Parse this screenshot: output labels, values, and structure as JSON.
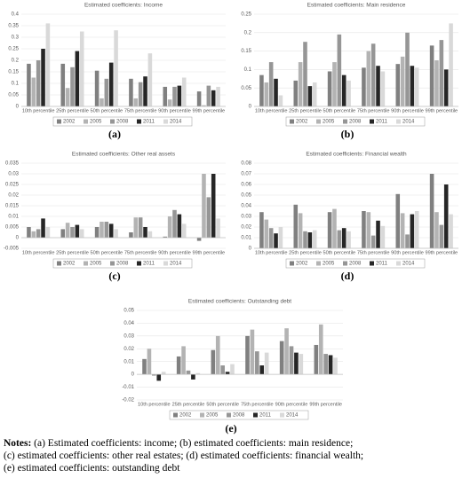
{
  "chart_data": [
    {
      "type": "bar",
      "title": "Estimated coefficients: Income",
      "categories": [
        "10th percentile",
        "25th percentile",
        "50th percentile",
        "75th percentile",
        "90th percentile",
        "99th percentile"
      ],
      "series": [
        {
          "name": "2002",
          "color": "#808080",
          "values": [
            0.185,
            0.185,
            0.155,
            0.12,
            0.085,
            0.065
          ]
        },
        {
          "name": "2005",
          "color": "#b3b3b3",
          "values": [
            0.125,
            0.08,
            0.035,
            0.035,
            0.03,
            0.005
          ]
        },
        {
          "name": "2008",
          "color": "#969696",
          "values": [
            0.2,
            0.17,
            0.12,
            0.105,
            0.085,
            0.09
          ]
        },
        {
          "name": "2011",
          "color": "#262626",
          "values": [
            0.25,
            0.24,
            0.19,
            0.13,
            0.09,
            0.07
          ]
        },
        {
          "name": "2014",
          "color": "#d9d9d9",
          "values": [
            0.36,
            0.325,
            0.33,
            0.23,
            0.125,
            0.085
          ]
        }
      ],
      "ylim": [
        0,
        0.4
      ],
      "yticks": [
        0,
        0.05,
        0.1,
        0.15,
        0.2,
        0.25,
        0.3,
        0.35,
        0.4
      ]
    },
    {
      "type": "bar",
      "title": "Estimated coefficients: Main residence",
      "categories": [
        "10th percentile",
        "25th percentile",
        "50th percentile",
        "75th percentile",
        "90th percentile",
        "99th percentile"
      ],
      "series": [
        {
          "name": "2002",
          "color": "#808080",
          "values": [
            0.085,
            0.07,
            0.095,
            0.105,
            0.115,
            0.165
          ]
        },
        {
          "name": "2005",
          "color": "#b3b3b3",
          "values": [
            0.065,
            0.12,
            0.12,
            0.15,
            0.135,
            0.125
          ]
        },
        {
          "name": "2008",
          "color": "#969696",
          "values": [
            0.12,
            0.175,
            0.195,
            0.17,
            0.2,
            0.18
          ]
        },
        {
          "name": "2011",
          "color": "#262626",
          "values": [
            0.075,
            0.055,
            0.085,
            0.11,
            0.11,
            0.1
          ]
        },
        {
          "name": "2014",
          "color": "#d9d9d9",
          "values": [
            0.03,
            0.065,
            0.07,
            0.095,
            0.105,
            0.225
          ]
        }
      ],
      "ylim": [
        0,
        0.25
      ],
      "yticks": [
        0,
        0.05,
        0.1,
        0.15,
        0.2,
        0.25
      ]
    },
    {
      "type": "bar",
      "title": "Estimated coefficients: Other real assets",
      "categories": [
        "10th percentile",
        "25th percentile",
        "50th percentile",
        "75th percentile",
        "90th percentile",
        "99th percentile"
      ],
      "series": [
        {
          "name": "2002",
          "color": "#808080",
          "values": [
            0.005,
            0.004,
            0.005,
            0.0025,
            0.0005,
            -0.0015
          ]
        },
        {
          "name": "2005",
          "color": "#b3b3b3",
          "values": [
            0.003,
            0.007,
            0.0075,
            0.0095,
            0.01,
            0.03
          ]
        },
        {
          "name": "2008",
          "color": "#969696",
          "values": [
            0.004,
            0.005,
            0.0075,
            0.0095,
            0.013,
            0.019
          ]
        },
        {
          "name": "2011",
          "color": "#262626",
          "values": [
            0.009,
            0.006,
            0.0065,
            0.005,
            0.011,
            0.03
          ]
        },
        {
          "name": "2014",
          "color": "#d9d9d9",
          "values": [
            0.005,
            0.004,
            0.004,
            0.003,
            0.0065,
            0.009
          ]
        }
      ],
      "ylim": [
        -0.005,
        0.035
      ],
      "yticks": [
        -0.005,
        0,
        0.005,
        0.01,
        0.015,
        0.02,
        0.025,
        0.03,
        0.035
      ]
    },
    {
      "type": "bar",
      "title": "Estimated coefficients: Financial wealth",
      "categories": [
        "10th percentile",
        "25th percentile",
        "50th percentile",
        "75th percentile",
        "90th percentile",
        "99th percentile"
      ],
      "series": [
        {
          "name": "2002",
          "color": "#808080",
          "values": [
            0.034,
            0.041,
            0.034,
            0.035,
            0.051,
            0.07
          ]
        },
        {
          "name": "2005",
          "color": "#b3b3b3",
          "values": [
            0.027,
            0.033,
            0.037,
            0.034,
            0.033,
            0.034
          ]
        },
        {
          "name": "2008",
          "color": "#969696",
          "values": [
            0.019,
            0.016,
            0.017,
            0.012,
            0.013,
            0.022
          ]
        },
        {
          "name": "2011",
          "color": "#262626",
          "values": [
            0.014,
            0.015,
            0.019,
            0.026,
            0.032,
            0.06
          ]
        },
        {
          "name": "2014",
          "color": "#d9d9d9",
          "values": [
            0.02,
            0.017,
            0.016,
            0.021,
            0.035,
            0.032
          ]
        }
      ],
      "ylim": [
        0,
        0.08
      ],
      "yticks": [
        0,
        0.01,
        0.02,
        0.03,
        0.04,
        0.05,
        0.06,
        0.07,
        0.08
      ]
    },
    {
      "type": "bar",
      "title": "Estimated coefficients: Outstanding debt",
      "categories": [
        "10th percentile",
        "25th percentile",
        "50th percentile",
        "75th percentile",
        "90th percentile",
        "99th percentile"
      ],
      "series": [
        {
          "name": "2002",
          "color": "#808080",
          "values": [
            0.012,
            0.014,
            0.019,
            0.03,
            0.026,
            0.023
          ]
        },
        {
          "name": "2005",
          "color": "#b3b3b3",
          "values": [
            0.02,
            0.022,
            0.03,
            0.035,
            0.036,
            0.039
          ]
        },
        {
          "name": "2008",
          "color": "#969696",
          "values": [
            -0.001,
            0.003,
            0.007,
            0.018,
            0.022,
            0.016
          ]
        },
        {
          "name": "2011",
          "color": "#262626",
          "values": [
            -0.005,
            -0.004,
            0.002,
            0.007,
            0.017,
            0.015
          ]
        },
        {
          "name": "2014",
          "color": "#d9d9d9",
          "values": [
            0.002,
            0.001,
            0.008,
            0.017,
            0.016,
            0.013
          ]
        }
      ],
      "ylim": [
        -0.02,
        0.05
      ],
      "yticks": [
        -0.02,
        -0.01,
        0,
        0.01,
        0.02,
        0.03,
        0.04,
        0.05
      ]
    }
  ],
  "panel_labels": [
    "(a)",
    "(b)",
    "(c)",
    "(d)",
    "(e)"
  ],
  "notes": {
    "label": "Notes:",
    "lines": [
      "(a) Estimated coefficients: income; (b) estimated coefficients: main residence;",
      "(c) estimated coefficients: other real estates; (d) estimated coefficients: financial wealth;",
      "(e) estimated coefficients: outstanding debt"
    ]
  }
}
